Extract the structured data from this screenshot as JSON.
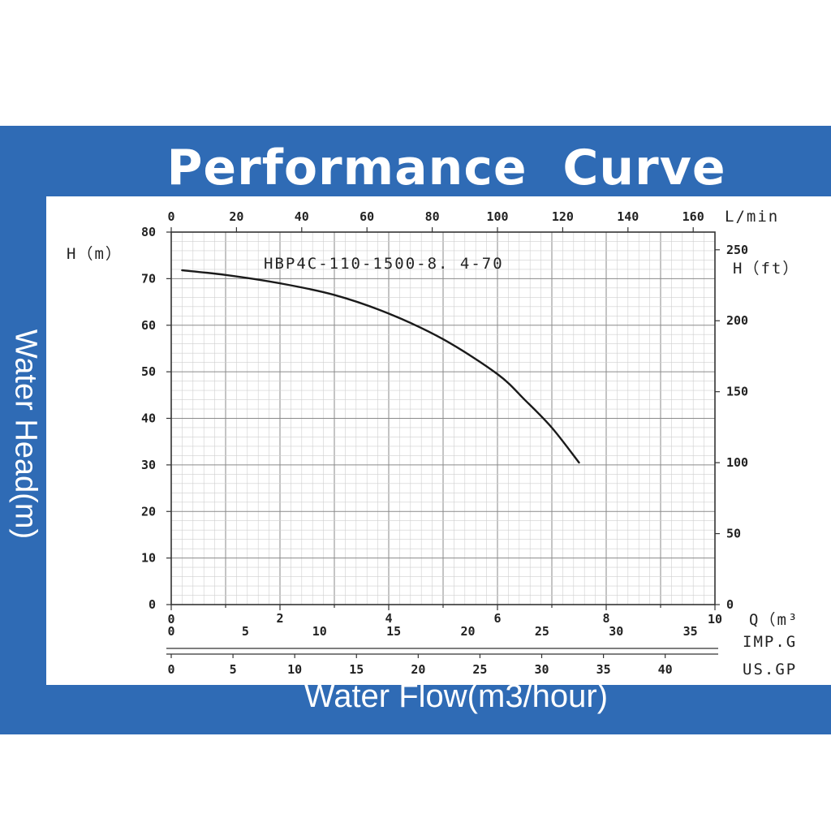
{
  "header": {
    "title": "Performance  Curve"
  },
  "side_labels": {
    "y": "Water Head(m)",
    "x": "Water Flow(m3/hour)"
  },
  "chart_data": {
    "type": "line",
    "title": "HBP4C-110-1500-8.4-70",
    "title_display": "HBP4C-110-1500-8. 4-70",
    "x_unit": "Q (m³/h)",
    "y_unit": "H (m)",
    "xlim": [
      0,
      10
    ],
    "ylim": [
      0,
      80
    ],
    "grid": true,
    "series": [
      {
        "x": [
          0.2,
          1.0,
          2.0,
          3.0,
          4.0,
          5.0,
          6.0,
          6.5,
          7.0,
          7.5
        ],
        "y": [
          71.8,
          70.8,
          69.0,
          66.5,
          62.5,
          57.0,
          49.5,
          44.0,
          38.0,
          30.5
        ]
      }
    ],
    "axes": {
      "left": {
        "label": "H（m）",
        "ticks": [
          "0",
          "10",
          "20",
          "30",
          "40",
          "50",
          "60",
          "70",
          "80"
        ]
      },
      "right": {
        "label": "H（ft）",
        "ticks": [
          "0",
          "50",
          "100",
          "150",
          "200",
          "250"
        ]
      },
      "top": {
        "label": "L/min",
        "ticks": [
          "0",
          "20",
          "40",
          "60",
          "80",
          "100",
          "120",
          "140",
          "160"
        ]
      },
      "bottom_q": {
        "label": "Q（m³",
        "ticks": [
          "0",
          "2",
          "4",
          "6",
          "8",
          "10"
        ]
      },
      "bottom_imp": {
        "label": "IMP.G",
        "ticks": [
          "0",
          "5",
          "10",
          "15",
          "20",
          "25",
          "30",
          "35"
        ]
      },
      "bottom_us": {
        "label": "US.GP",
        "ticks": [
          "0",
          "5",
          "10",
          "15",
          "20",
          "25",
          "30",
          "35",
          "40"
        ]
      }
    }
  }
}
